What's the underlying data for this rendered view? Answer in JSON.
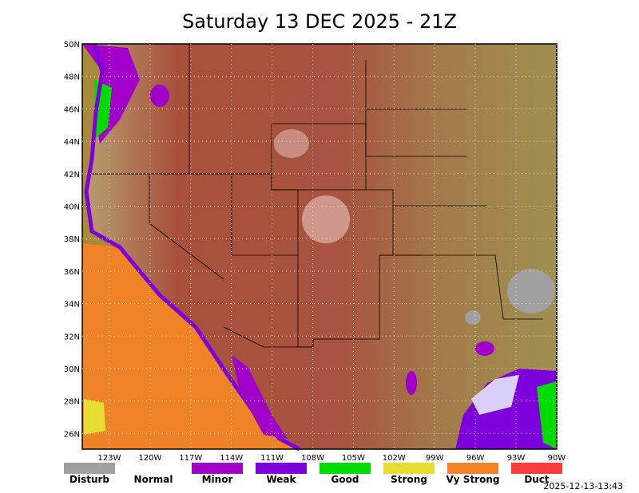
{
  "title": "Saturday 13 DEC 2025 - 21Z",
  "map": {
    "lat_labels": [
      "50N",
      "48N",
      "46N",
      "44N",
      "42N",
      "40N",
      "38N",
      "36N",
      "34N",
      "32N",
      "30N",
      "28N",
      "26N"
    ],
    "lon_labels": [
      "123W",
      "120W",
      "117W",
      "114W",
      "111W",
      "108W",
      "105W",
      "102W",
      "99W",
      "96W",
      "93W",
      "90W"
    ]
  },
  "legend": [
    {
      "label": "Disturb",
      "color": "#a0a0a0"
    },
    {
      "label": "Normal"
    },
    {
      "label": "Minor",
      "color": "#a000c8"
    },
    {
      "label": "Weak",
      "color": "#7d00dc"
    },
    {
      "label": "Good",
      "color": "#00dc00"
    },
    {
      "label": "Strong",
      "color": "#e6dc32"
    },
    {
      "label": "Vy Strong",
      "color": "#f08228"
    },
    {
      "label": "Duct",
      "color": "#fa3c3c"
    }
  ],
  "timestamp": "2025-12-13-13:43"
}
